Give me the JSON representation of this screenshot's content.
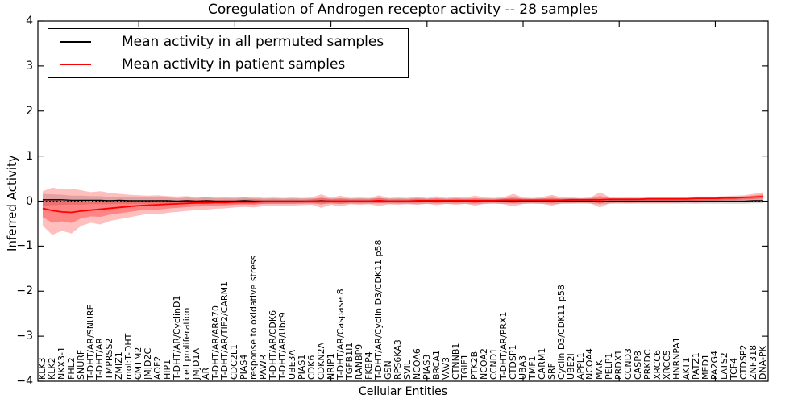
{
  "figure": {
    "title": "Coregulation of Androgen receptor activity -- 28 samples",
    "xlabel": "Cellular Entities",
    "ylabel": "Inferred Activity"
  },
  "legend": {
    "items": [
      {
        "label": "Mean activity in all permuted samples",
        "color": "#000000"
      },
      {
        "label": "Mean activity in patient samples",
        "color": "#ff0000"
      }
    ]
  },
  "chart_data": {
    "type": "line",
    "title": "Coregulation of Androgen receptor activity -- 28 samples",
    "xlabel": "Cellular Entities",
    "ylabel": "Inferred Activity",
    "ylim": [
      -4,
      4
    ],
    "ytick_values": [
      4,
      3,
      2,
      1,
      0,
      -1,
      -2,
      -3,
      -4
    ],
    "ytick_labels": [
      "4",
      "3",
      "2",
      "1",
      "0",
      "−1",
      "−2",
      "−3",
      "−4"
    ],
    "grid": false,
    "legend_position": "upper left",
    "zero_line": {
      "value": 0,
      "style": "dotted",
      "color": "#000000"
    },
    "categories": [
      "KLK3",
      "KLK2",
      "NKX3-1",
      "FHL2",
      "SNURF",
      "T-DHT/AR/SNURF",
      "T-DHT/AR",
      "TMPRSS2",
      "ZMIZ1",
      "mol:T-DHT",
      "CMTM2",
      "JMJD2C",
      "AOF2",
      "HIP1",
      "T-DHT/AR/CyclinD1",
      "cell proliferation",
      "JMJD1A",
      "AR",
      "T-DHT/AR/ARA70",
      "T-DHT/AR/TIF2/CARM1",
      "CDC2L1",
      "PIAS4",
      "response to oxidative stress",
      "PAWR",
      "T-DHT/AR/CDK6",
      "T-DHT/AR/Ubc9",
      "UBE3A",
      "PIAS1",
      "CDK6",
      "CDKN2A",
      "NRIP1",
      "T-DHT/AR/Caspase 8",
      "TGFB1I1",
      "RANBP9",
      "FKBP4",
      "T-DHT/AR/Cyclin D3/CDK11 p58",
      "GSN",
      "RPS6KA3",
      "SVIL",
      "NCOA6",
      "PIAS3",
      "BRCA1",
      "VAV3",
      "CTNNB1",
      "TGIF1",
      "PTK2B",
      "NCOA2",
      "CCND1",
      "T-DHT/AR/PRX1",
      "CTDSP1",
      "UBA3",
      "TMF1",
      "CARM1",
      "SRF",
      "Cyclin D3/CDK11 p58",
      "UBE2I",
      "APPL1",
      "NCOA4",
      "MAK",
      "PELP1",
      "PRDX1",
      "CCND3",
      "CASP8",
      "PRKDC",
      "XRCC6",
      "XRCC5",
      "HNRNPA1",
      "AKT1",
      "PATZ1",
      "MED1",
      "PA2G4",
      "LATS2",
      "TCF4",
      "CTDSP2",
      "ZNF318",
      "DNA-PK"
    ],
    "series": [
      {
        "name": "Mean activity in all permuted samples",
        "color": "#000000",
        "values": [
          0.03,
          0.03,
          0.03,
          0.02,
          0.02,
          0.02,
          0.02,
          0.01,
          0.02,
          0.01,
          0.01,
          0.01,
          0.01,
          0.01,
          0.0,
          0.01,
          0.0,
          0.01,
          0.0,
          0.0,
          0.0,
          0.01,
          0.0,
          0.0,
          0.0,
          0.0,
          0.0,
          0.0,
          0.0,
          0.01,
          0.0,
          0.0,
          0.0,
          0.0,
          0.0,
          0.01,
          0.0,
          0.0,
          0.0,
          0.0,
          0.0,
          0.0,
          0.0,
          0.0,
          0.0,
          -0.01,
          0.0,
          0.0,
          0.0,
          0.0,
          0.0,
          0.0,
          0.0,
          -0.01,
          0.0,
          0.0,
          0.0,
          0.0,
          -0.01,
          0.0,
          0.0,
          0.0,
          0.0,
          0.0,
          0.0,
          0.0,
          0.0,
          0.0,
          0.0,
          0.0,
          0.0,
          0.0,
          0.0,
          0.0,
          0.01,
          0.01
        ]
      },
      {
        "name": "Mean activity in patient samples",
        "color": "#ff0000",
        "values": [
          -0.16,
          -0.21,
          -0.24,
          -0.25,
          -0.22,
          -0.2,
          -0.18,
          -0.16,
          -0.14,
          -0.12,
          -0.1,
          -0.09,
          -0.08,
          -0.07,
          -0.06,
          -0.05,
          -0.04,
          -0.04,
          -0.03,
          -0.03,
          -0.02,
          -0.02,
          -0.02,
          -0.01,
          -0.01,
          -0.01,
          -0.01,
          -0.01,
          0.0,
          0.0,
          0.0,
          0.0,
          0.0,
          0.0,
          0.0,
          0.01,
          0.0,
          0.0,
          0.0,
          0.01,
          0.01,
          0.01,
          0.01,
          0.01,
          0.01,
          0.01,
          0.01,
          0.01,
          0.02,
          0.02,
          0.02,
          0.02,
          0.02,
          0.02,
          0.02,
          0.03,
          0.03,
          0.03,
          0.03,
          0.04,
          0.04,
          0.04,
          0.04,
          0.05,
          0.05,
          0.05,
          0.05,
          0.05,
          0.06,
          0.06,
          0.06,
          0.07,
          0.07,
          0.08,
          0.09,
          0.1
        ]
      }
    ],
    "bands": {
      "permuted_spread": {
        "center_series": 0,
        "fill": "#000000",
        "fill_opacity": 0.15,
        "halfwidth": [
          0.13,
          0.12,
          0.11,
          0.1,
          0.1,
          0.09,
          0.09,
          0.08,
          0.08,
          0.08,
          0.07,
          0.07,
          0.07,
          0.07,
          0.06,
          0.07,
          0.06,
          0.08,
          0.06,
          0.07,
          0.06,
          0.07,
          0.06,
          0.06,
          0.06,
          0.06,
          0.06,
          0.06,
          0.06,
          0.06,
          0.06,
          0.06,
          0.06,
          0.06,
          0.06,
          0.06,
          0.06,
          0.06,
          0.06,
          0.07,
          0.06,
          0.06,
          0.06,
          0.06,
          0.06,
          0.06,
          0.06,
          0.06,
          0.06,
          0.06,
          0.06,
          0.06,
          0.06,
          0.06,
          0.06,
          0.06,
          0.06,
          0.06,
          0.06,
          0.06,
          0.06,
          0.06,
          0.06,
          0.06,
          0.06,
          0.06,
          0.06,
          0.06,
          0.06,
          0.06,
          0.06,
          0.06,
          0.06,
          0.06,
          0.06,
          0.06
        ]
      },
      "patient_outer": {
        "fill": "#ff0000",
        "fill_opacity": 0.25,
        "upper": [
          0.22,
          0.3,
          0.26,
          0.28,
          0.24,
          0.2,
          0.22,
          0.18,
          0.16,
          0.14,
          0.13,
          0.12,
          0.13,
          0.11,
          0.1,
          0.11,
          0.09,
          0.1,
          0.08,
          0.09,
          0.08,
          0.09,
          0.1,
          0.07,
          0.08,
          0.07,
          0.08,
          0.07,
          0.08,
          0.15,
          0.08,
          0.12,
          0.07,
          0.08,
          0.07,
          0.13,
          0.07,
          0.08,
          0.07,
          0.1,
          0.07,
          0.11,
          0.07,
          0.1,
          0.08,
          0.12,
          0.08,
          0.07,
          0.09,
          0.16,
          0.08,
          0.07,
          0.09,
          0.14,
          0.08,
          0.08,
          0.07,
          0.08,
          0.2,
          0.09,
          0.08,
          0.09,
          0.08,
          0.09,
          0.09,
          0.09,
          0.09,
          0.09,
          0.1,
          0.1,
          0.1,
          0.11,
          0.12,
          0.13,
          0.16,
          0.2
        ],
        "lower": [
          -0.55,
          -0.75,
          -0.66,
          -0.72,
          -0.55,
          -0.48,
          -0.52,
          -0.44,
          -0.4,
          -0.36,
          -0.32,
          -0.28,
          -0.3,
          -0.26,
          -0.24,
          -0.22,
          -0.2,
          -0.19,
          -0.17,
          -0.16,
          -0.14,
          -0.13,
          -0.14,
          -0.11,
          -0.1,
          -0.1,
          -0.1,
          -0.09,
          -0.08,
          -0.15,
          -0.08,
          -0.12,
          -0.07,
          -0.08,
          -0.07,
          -0.11,
          -0.07,
          -0.08,
          -0.07,
          -0.08,
          -0.06,
          -0.09,
          -0.06,
          -0.08,
          -0.06,
          -0.1,
          -0.06,
          -0.05,
          -0.07,
          -0.12,
          -0.06,
          -0.05,
          -0.06,
          -0.1,
          -0.05,
          -0.05,
          -0.04,
          -0.05,
          -0.14,
          -0.05,
          -0.04,
          -0.05,
          -0.04,
          -0.04,
          -0.04,
          -0.04,
          -0.04,
          -0.03,
          -0.04,
          -0.03,
          -0.03,
          -0.02,
          -0.02,
          -0.01,
          0.0,
          0.02
        ]
      },
      "patient_inner": {
        "fill": "#ff0000",
        "fill_opacity": 0.3,
        "scale_of_outer": 0.5
      }
    }
  }
}
